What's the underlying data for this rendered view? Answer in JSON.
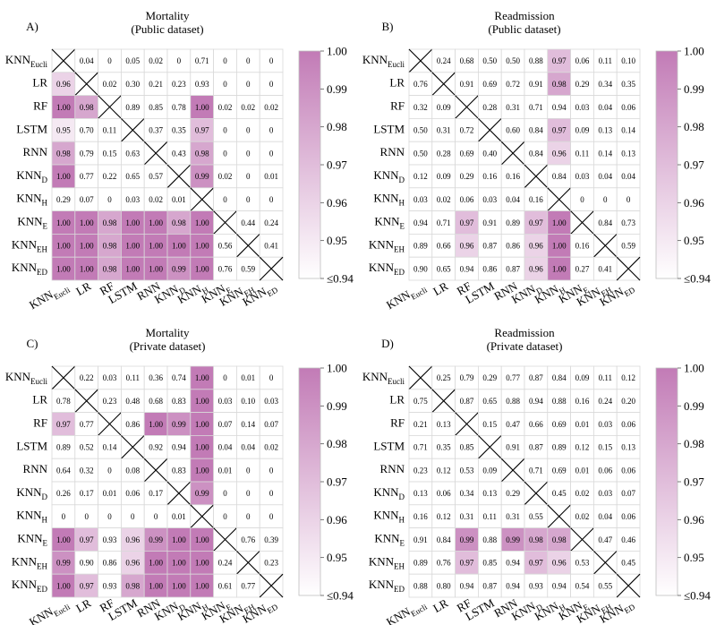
{
  "colors": {
    "high": "#c27bb6",
    "low": "#ffffff",
    "grid": "#d9d9d9",
    "line": "#000000"
  },
  "chart_data": [
    {
      "type": "heatmap",
      "panel_label": "A)",
      "title": "Mortality",
      "subtitle": "(Public dataset)",
      "labels": [
        [
          "KNN",
          "Eucli"
        ],
        [
          "LR",
          ""
        ],
        [
          "RF",
          ""
        ],
        [
          "LSTM",
          ""
        ],
        [
          "RNN",
          ""
        ],
        [
          "KNN",
          "D"
        ],
        [
          "KNN",
          "H"
        ],
        [
          "KNN",
          "E"
        ],
        [
          "KNN",
          "EH"
        ],
        [
          "KNN",
          "ED"
        ]
      ],
      "colorbar_ticks": [
        "1.00",
        "0.99",
        "0.98",
        "0.97",
        "0.96",
        "0.95",
        "≤0.94"
      ],
      "range": [
        0.94,
        1.0
      ],
      "matrix": [
        [
          null,
          "0.04",
          "0",
          "0.05",
          "0.02",
          "0",
          "0.71",
          "0",
          "0",
          "0"
        ],
        [
          "0.96",
          null,
          "0.02",
          "0.30",
          "0.21",
          "0.23",
          "0.93",
          "0",
          "0",
          "0"
        ],
        [
          "1.00",
          "0.98",
          null,
          "0.89",
          "0.85",
          "0.78",
          "1.00",
          "0.02",
          "0.02",
          "0.02"
        ],
        [
          "0.95",
          "0.70",
          "0.11",
          null,
          "0.37",
          "0.35",
          "0.97",
          "0",
          "0",
          "0"
        ],
        [
          "0.98",
          "0.79",
          "0.15",
          "0.63",
          null,
          "0.43",
          "0.98",
          "0",
          "0",
          "0"
        ],
        [
          "1.00",
          "0.77",
          "0.22",
          "0.65",
          "0.57",
          null,
          "0.99",
          "0.02",
          "0",
          "0.01"
        ],
        [
          "0.29",
          "0.07",
          "0",
          "0.03",
          "0.02",
          "0.01",
          null,
          "0",
          "0",
          "0"
        ],
        [
          "1.00",
          "1.00",
          "0.98",
          "1.00",
          "1.00",
          "0.98",
          "1.00",
          null,
          "0.44",
          "0.24"
        ],
        [
          "1.00",
          "1.00",
          "0.98",
          "1.00",
          "1.00",
          "1.00",
          "1.00",
          "0.56",
          null,
          "0.41"
        ],
        [
          "1.00",
          "1.00",
          "0.98",
          "1.00",
          "1.00",
          "0.99",
          "1.00",
          "0.76",
          "0.59",
          null
        ]
      ]
    },
    {
      "type": "heatmap",
      "panel_label": "B)",
      "title": "Readmission",
      "subtitle": "(Public dataset)",
      "labels": [
        [
          "KNN",
          "Eucli"
        ],
        [
          "LR",
          ""
        ],
        [
          "RF",
          ""
        ],
        [
          "LSTM",
          ""
        ],
        [
          "RNN",
          ""
        ],
        [
          "KNN",
          "D"
        ],
        [
          "KNN",
          "H"
        ],
        [
          "KNN",
          "E"
        ],
        [
          "KNN",
          "EH"
        ],
        [
          "KNN",
          "ED"
        ]
      ],
      "colorbar_ticks": [
        "1.00",
        "0.99",
        "0.98",
        "0.97",
        "0.96",
        "0.95",
        "≤0.94"
      ],
      "range": [
        0.94,
        1.0
      ],
      "matrix": [
        [
          null,
          "0.24",
          "0.68",
          "0.50",
          "0.50",
          "0.88",
          "0.97",
          "0.06",
          "0.11",
          "0.10"
        ],
        [
          "0.76",
          null,
          "0.91",
          "0.69",
          "0.72",
          "0.91",
          "0.98",
          "0.29",
          "0.34",
          "0.35"
        ],
        [
          "0.32",
          "0.09",
          null,
          "0.28",
          "0.31",
          "0.71",
          "0.94",
          "0.03",
          "0.04",
          "0.06"
        ],
        [
          "0.50",
          "0.31",
          "0.72",
          null,
          "0.60",
          "0.84",
          "0.97",
          "0.09",
          "0.13",
          "0.14"
        ],
        [
          "0.50",
          "0.28",
          "0.69",
          "0.40",
          null,
          "0.84",
          "0.96",
          "0.11",
          "0.14",
          "0.13"
        ],
        [
          "0.12",
          "0.09",
          "0.29",
          "0.16",
          "0.16",
          null,
          "0.84",
          "0.03",
          "0.04",
          "0.04"
        ],
        [
          "0.03",
          "0.02",
          "0.06",
          "0.03",
          "0.04",
          "0.16",
          null,
          "0",
          "0",
          "0"
        ],
        [
          "0.94",
          "0.71",
          "0.97",
          "0.91",
          "0.89",
          "0.97",
          "1.00",
          null,
          "0.84",
          "0.73"
        ],
        [
          "0.89",
          "0.66",
          "0.96",
          "0.87",
          "0.86",
          "0.96",
          "1.00",
          "0.16",
          null,
          "0.59"
        ],
        [
          "0.90",
          "0.65",
          "0.94",
          "0.86",
          "0.87",
          "0.96",
          "1.00",
          "0.27",
          "0.41",
          null
        ]
      ]
    },
    {
      "type": "heatmap",
      "panel_label": "C)",
      "title": "Mortality",
      "subtitle": "(Private dataset)",
      "labels": [
        [
          "KNN",
          "Eucli"
        ],
        [
          "LR",
          ""
        ],
        [
          "RF",
          ""
        ],
        [
          "LSTM",
          ""
        ],
        [
          "RNN",
          ""
        ],
        [
          "KNN",
          "D"
        ],
        [
          "KNN",
          "H"
        ],
        [
          "KNN",
          "E"
        ],
        [
          "KNN",
          "EH"
        ],
        [
          "KNN",
          "ED"
        ]
      ],
      "colorbar_ticks": [
        "1.00",
        "0.99",
        "0.98",
        "0.97",
        "0.96",
        "0.95",
        "≤0.94"
      ],
      "range": [
        0.94,
        1.0
      ],
      "matrix": [
        [
          null,
          "0.22",
          "0.03",
          "0.11",
          "0.36",
          "0.74",
          "1.00",
          "0",
          "0.01",
          "0"
        ],
        [
          "0.78",
          null,
          "0.23",
          "0.48",
          "0.68",
          "0.83",
          "1.00",
          "0.03",
          "0.10",
          "0.03"
        ],
        [
          "0.97",
          "0.77",
          null,
          "0.86",
          "1.00",
          "0.99",
          "1.00",
          "0.07",
          "0.14",
          "0.07"
        ],
        [
          "0.89",
          "0.52",
          "0.14",
          null,
          "0.92",
          "0.94",
          "1.00",
          "0.04",
          "0.04",
          "0.02"
        ],
        [
          "0.64",
          "0.32",
          "0",
          "0.08",
          null,
          "0.83",
          "1.00",
          "0.01",
          "0",
          "0"
        ],
        [
          "0.26",
          "0.17",
          "0.01",
          "0.06",
          "0.17",
          null,
          "0.99",
          "0",
          "0",
          "0"
        ],
        [
          "0",
          "0",
          "0",
          "0",
          "0",
          "0.01",
          null,
          "0",
          "0",
          "0"
        ],
        [
          "1.00",
          "0.97",
          "0.93",
          "0.96",
          "0.99",
          "1.00",
          "1.00",
          null,
          "0.76",
          "0.39"
        ],
        [
          "0.99",
          "0.90",
          "0.86",
          "0.96",
          "1.00",
          "1.00",
          "1.00",
          "0.24",
          null,
          "0.23"
        ],
        [
          "1.00",
          "0.97",
          "0.93",
          "0.98",
          "1.00",
          "1.00",
          "1.00",
          "0.61",
          "0.77",
          null
        ]
      ]
    },
    {
      "type": "heatmap",
      "panel_label": "D)",
      "title": "Readmission",
      "subtitle": "(Private dataset)",
      "labels": [
        [
          "KNN",
          "Eucli"
        ],
        [
          "LR",
          ""
        ],
        [
          "RF",
          ""
        ],
        [
          "LSTM",
          ""
        ],
        [
          "RNN",
          ""
        ],
        [
          "KNN",
          "D"
        ],
        [
          "KNN",
          "H"
        ],
        [
          "KNN",
          "E"
        ],
        [
          "KNN",
          "EH"
        ],
        [
          "KNN",
          "ED"
        ]
      ],
      "colorbar_ticks": [
        "1.00",
        "0.99",
        "0.98",
        "0.97",
        "0.96",
        "0.95",
        "≤0.94"
      ],
      "range": [
        0.94,
        1.0
      ],
      "matrix": [
        [
          null,
          "0.25",
          "0.79",
          "0.29",
          "0.77",
          "0.87",
          "0.84",
          "0.09",
          "0.11",
          "0.12"
        ],
        [
          "0.75",
          null,
          "0.87",
          "0.65",
          "0.88",
          "0.94",
          "0.88",
          "0.16",
          "0.24",
          "0.20"
        ],
        [
          "0.21",
          "0.13",
          null,
          "0.15",
          "0.47",
          "0.66",
          "0.69",
          "0.01",
          "0.03",
          "0.06"
        ],
        [
          "0.71",
          "0.35",
          "0.85",
          null,
          "0.91",
          "0.87",
          "0.89",
          "0.12",
          "0.15",
          "0.13"
        ],
        [
          "0.23",
          "0.12",
          "0.53",
          "0.09",
          null,
          "0.71",
          "0.69",
          "0.01",
          "0.06",
          "0.06"
        ],
        [
          "0.13",
          "0.06",
          "0.34",
          "0.13",
          "0.29",
          null,
          "0.45",
          "0.02",
          "0.03",
          "0.07"
        ],
        [
          "0.16",
          "0.12",
          "0.31",
          "0.11",
          "0.31",
          "0.55",
          null,
          "0.02",
          "0.04",
          "0.06"
        ],
        [
          "0.91",
          "0.84",
          "0.99",
          "0.88",
          "0.99",
          "0.98",
          "0.98",
          null,
          "0.47",
          "0.46"
        ],
        [
          "0.89",
          "0.76",
          "0.97",
          "0.85",
          "0.94",
          "0.97",
          "0.96",
          "0.53",
          null,
          "0.45"
        ],
        [
          "0.88",
          "0.80",
          "0.94",
          "0.87",
          "0.94",
          "0.93",
          "0.94",
          "0.54",
          "0.55",
          null
        ]
      ]
    }
  ]
}
